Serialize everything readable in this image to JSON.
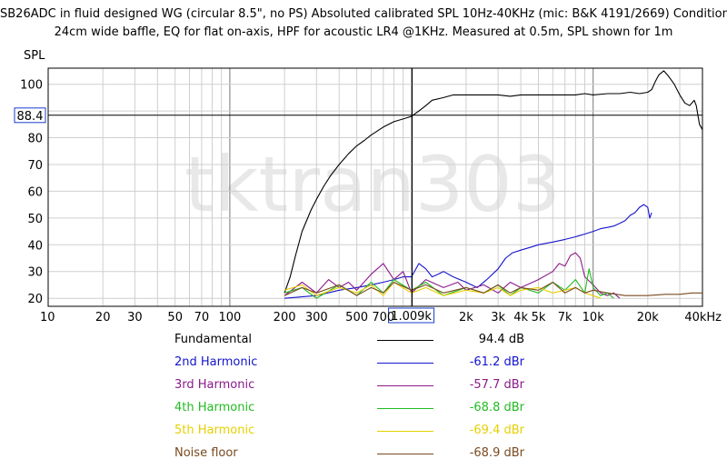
{
  "title": {
    "line1": "SB26ADC in fluid designed WG (circular 8.5\", no PS) Absoluted calibrated SPL 10Hz-40KHz (mic: B&K 4191/2669) Conditions-",
    "line2": "24cm wide baffle, EQ for flat on-axis, HPF for acoustic LR4 @1KHz. Measured at 0.5m, SPL shown for 1m"
  },
  "chart_data": {
    "type": "line",
    "watermark": "tktran303",
    "ylabel": "SPL",
    "xscale": "log",
    "xlim": [
      10,
      40000
    ],
    "ylim": [
      17,
      106
    ],
    "grid": true,
    "x_ticks": [
      {
        "v": 10,
        "label": "10"
      },
      {
        "v": 20,
        "label": "20"
      },
      {
        "v": 30,
        "label": "30"
      },
      {
        "v": 50,
        "label": "50"
      },
      {
        "v": 70,
        "label": "70"
      },
      {
        "v": 100,
        "label": "100"
      },
      {
        "v": 200,
        "label": "200"
      },
      {
        "v": 300,
        "label": "300"
      },
      {
        "v": 500,
        "label": "500"
      },
      {
        "v": 700,
        "label": "700"
      },
      {
        "v": 2000,
        "label": "2k"
      },
      {
        "v": 3000,
        "label": "3k"
      },
      {
        "v": 4000,
        "label": "4k"
      },
      {
        "v": 5000,
        "label": "5k"
      },
      {
        "v": 7000,
        "label": "7k"
      },
      {
        "v": 10000,
        "label": "10k"
      },
      {
        "v": 20000,
        "label": "20k"
      },
      {
        "v": 40000,
        "label": "40kHz"
      }
    ],
    "y_ticks": [
      20,
      30,
      40,
      50,
      60,
      70,
      80,
      100
    ],
    "cursor": {
      "x": 1009,
      "x_label": "1.009k",
      "y": 88.4,
      "y_label": "88.4"
    },
    "series": [
      {
        "name": "Fundamental",
        "legend_value": "94.4 dB",
        "color": "#000000",
        "points": [
          [
            200,
            22
          ],
          [
            215,
            28
          ],
          [
            230,
            36
          ],
          [
            250,
            45
          ],
          [
            280,
            53
          ],
          [
            300,
            57
          ],
          [
            330,
            62
          ],
          [
            360,
            66
          ],
          [
            400,
            70
          ],
          [
            450,
            74
          ],
          [
            500,
            77
          ],
          [
            550,
            79
          ],
          [
            600,
            81
          ],
          [
            700,
            84
          ],
          [
            800,
            86
          ],
          [
            900,
            87
          ],
          [
            1000,
            88
          ],
          [
            1100,
            90
          ],
          [
            1200,
            92
          ],
          [
            1300,
            94
          ],
          [
            1500,
            95
          ],
          [
            1700,
            96
          ],
          [
            2000,
            96
          ],
          [
            2500,
            96
          ],
          [
            3000,
            96
          ],
          [
            3500,
            95.5
          ],
          [
            4000,
            96
          ],
          [
            5000,
            96
          ],
          [
            6000,
            96
          ],
          [
            7000,
            96
          ],
          [
            8000,
            96
          ],
          [
            9000,
            96.5
          ],
          [
            10000,
            96
          ],
          [
            12000,
            96.5
          ],
          [
            14000,
            96.5
          ],
          [
            16000,
            97
          ],
          [
            18000,
            96.5
          ],
          [
            20000,
            97
          ],
          [
            21000,
            98
          ],
          [
            22000,
            101
          ],
          [
            23000,
            103.5
          ],
          [
            24500,
            105
          ],
          [
            26000,
            103
          ],
          [
            28000,
            100
          ],
          [
            30000,
            96
          ],
          [
            32000,
            93
          ],
          [
            34000,
            92
          ],
          [
            36000,
            94
          ],
          [
            37000,
            92
          ],
          [
            38500,
            85
          ],
          [
            40000,
            83
          ]
        ]
      },
      {
        "name": "2nd Harmonic",
        "legend_value": "-61.2 dBr",
        "color": "#1414cc",
        "points": [
          [
            200,
            20
          ],
          [
            300,
            21
          ],
          [
            400,
            23
          ],
          [
            500,
            24
          ],
          [
            600,
            25
          ],
          [
            700,
            26
          ],
          [
            800,
            27
          ],
          [
            900,
            28
          ],
          [
            1000,
            28
          ],
          [
            1100,
            33
          ],
          [
            1200,
            31
          ],
          [
            1300,
            28
          ],
          [
            1400,
            29
          ],
          [
            1500,
            30
          ],
          [
            1700,
            28
          ],
          [
            2000,
            26
          ],
          [
            2300,
            24
          ],
          [
            2600,
            27
          ],
          [
            3000,
            31
          ],
          [
            3300,
            35
          ],
          [
            3600,
            37
          ],
          [
            4000,
            38
          ],
          [
            4500,
            39
          ],
          [
            5000,
            40
          ],
          [
            6000,
            41
          ],
          [
            7000,
            42
          ],
          [
            8000,
            43
          ],
          [
            9000,
            44
          ],
          [
            10000,
            45
          ],
          [
            11000,
            46
          ],
          [
            12000,
            46.5
          ],
          [
            13000,
            47
          ],
          [
            14000,
            48
          ],
          [
            15000,
            49
          ],
          [
            16000,
            51
          ],
          [
            17000,
            52
          ],
          [
            18000,
            54
          ],
          [
            19000,
            55
          ],
          [
            20000,
            54
          ],
          [
            20500,
            50
          ],
          [
            21000,
            52
          ]
        ]
      },
      {
        "name": "3rd Harmonic",
        "legend_value": "-57.7 dBr",
        "color": "#8b1a8b",
        "points": [
          [
            200,
            21
          ],
          [
            250,
            26
          ],
          [
            300,
            22
          ],
          [
            350,
            27
          ],
          [
            400,
            24
          ],
          [
            450,
            26
          ],
          [
            500,
            23
          ],
          [
            600,
            29
          ],
          [
            700,
            33
          ],
          [
            800,
            27
          ],
          [
            900,
            30
          ],
          [
            1000,
            22
          ],
          [
            1200,
            27
          ],
          [
            1500,
            24
          ],
          [
            1800,
            26
          ],
          [
            2000,
            23
          ],
          [
            2500,
            25
          ],
          [
            3000,
            22
          ],
          [
            3500,
            26
          ],
          [
            4000,
            24
          ],
          [
            5000,
            27
          ],
          [
            6000,
            30
          ],
          [
            6500,
            33
          ],
          [
            7000,
            32
          ],
          [
            7500,
            36
          ],
          [
            8000,
            37
          ],
          [
            8500,
            35
          ],
          [
            9000,
            28
          ],
          [
            10000,
            25
          ],
          [
            11000,
            22
          ],
          [
            12000,
            21
          ],
          [
            13000,
            22
          ],
          [
            14000,
            20
          ]
        ]
      },
      {
        "name": "4th Harmonic",
        "legend_value": "-68.8 dBr",
        "color": "#22bb22",
        "points": [
          [
            200,
            22
          ],
          [
            250,
            24
          ],
          [
            300,
            20
          ],
          [
            400,
            25
          ],
          [
            500,
            21
          ],
          [
            600,
            26
          ],
          [
            700,
            22
          ],
          [
            800,
            27
          ],
          [
            1000,
            23
          ],
          [
            1200,
            26
          ],
          [
            1500,
            21
          ],
          [
            2000,
            24
          ],
          [
            2500,
            22
          ],
          [
            3000,
            25
          ],
          [
            3500,
            21
          ],
          [
            4000,
            24
          ],
          [
            5000,
            22
          ],
          [
            6000,
            26
          ],
          [
            7000,
            23
          ],
          [
            8000,
            27
          ],
          [
            9000,
            22
          ],
          [
            9500,
            31
          ],
          [
            10000,
            24
          ],
          [
            11000,
            21
          ],
          [
            12000,
            22
          ],
          [
            13000,
            20
          ]
        ]
      },
      {
        "name": "5th Harmonic",
        "legend_value": "-69.4 dBr",
        "color": "#e6d000",
        "points": [
          [
            200,
            23
          ],
          [
            250,
            25
          ],
          [
            300,
            21
          ],
          [
            400,
            24
          ],
          [
            500,
            22
          ],
          [
            600,
            25
          ],
          [
            700,
            21
          ],
          [
            800,
            26
          ],
          [
            1000,
            22
          ],
          [
            1200,
            24
          ],
          [
            1500,
            21
          ],
          [
            2000,
            23
          ],
          [
            2500,
            22
          ],
          [
            3000,
            24
          ],
          [
            3500,
            21
          ],
          [
            4000,
            23
          ],
          [
            5000,
            24
          ],
          [
            6000,
            22
          ],
          [
            7000,
            23
          ],
          [
            8000,
            24
          ],
          [
            9000,
            22
          ],
          [
            10000,
            21
          ],
          [
            11000,
            20
          ]
        ]
      },
      {
        "name": "Noise floor",
        "legend_value": "-68.9 dBr",
        "color": "#7a4a20",
        "points": [
          [
            200,
            21
          ],
          [
            250,
            24
          ],
          [
            300,
            22
          ],
          [
            400,
            25
          ],
          [
            500,
            21
          ],
          [
            600,
            24
          ],
          [
            700,
            22
          ],
          [
            800,
            26
          ],
          [
            1000,
            23
          ],
          [
            1200,
            25
          ],
          [
            1500,
            22
          ],
          [
            2000,
            24
          ],
          [
            2500,
            22
          ],
          [
            3000,
            25
          ],
          [
            3500,
            22
          ],
          [
            4000,
            24
          ],
          [
            5000,
            23
          ],
          [
            6000,
            26
          ],
          [
            7000,
            22
          ],
          [
            8000,
            24
          ],
          [
            9000,
            22
          ],
          [
            10000,
            23
          ],
          [
            12000,
            22
          ],
          [
            15000,
            21
          ],
          [
            18000,
            21
          ],
          [
            20000,
            21
          ],
          [
            25000,
            21.5
          ],
          [
            30000,
            21.5
          ],
          [
            35000,
            22
          ],
          [
            40000,
            22
          ]
        ]
      }
    ]
  }
}
